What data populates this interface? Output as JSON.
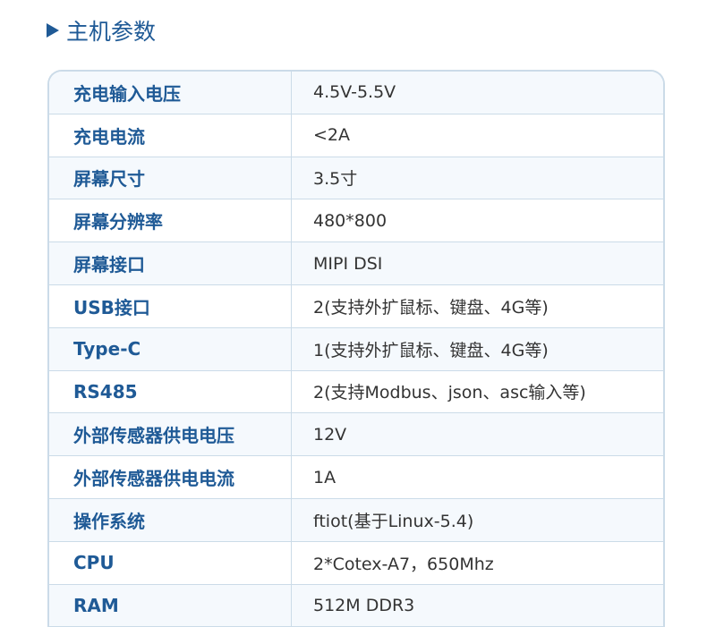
{
  "section_title": "主机参数",
  "rows": [
    {
      "label": "充电输入电压",
      "value": "4.5V-5.5V"
    },
    {
      "label": "充电电流",
      "value": "<2A"
    },
    {
      "label": "屏幕尺寸",
      "value": "3.5寸"
    },
    {
      "label": "屏幕分辨率",
      "value": "480*800"
    },
    {
      "label": "屏幕接口",
      "value": "MIPI DSI"
    },
    {
      "label": "USB接口",
      "value": "2(支持外扩鼠标、键盘、4G等)"
    },
    {
      "label": "Type-C",
      "value": "1(支持外扩鼠标、键盘、4G等)"
    },
    {
      "label": "RS485",
      "value": "2(支持Modbus、json、asc输入等)"
    },
    {
      "label": "外部传感器供电电压",
      "value": "12V"
    },
    {
      "label": "外部传感器供电电流",
      "value": "1A"
    },
    {
      "label": "操作系统",
      "value": "ftiot(基于Linux-5.4)"
    },
    {
      "label": "CPU",
      "value": "2*Cotex-A7，650Mhz"
    },
    {
      "label": "RAM",
      "value": "512M DDR3"
    }
  ]
}
